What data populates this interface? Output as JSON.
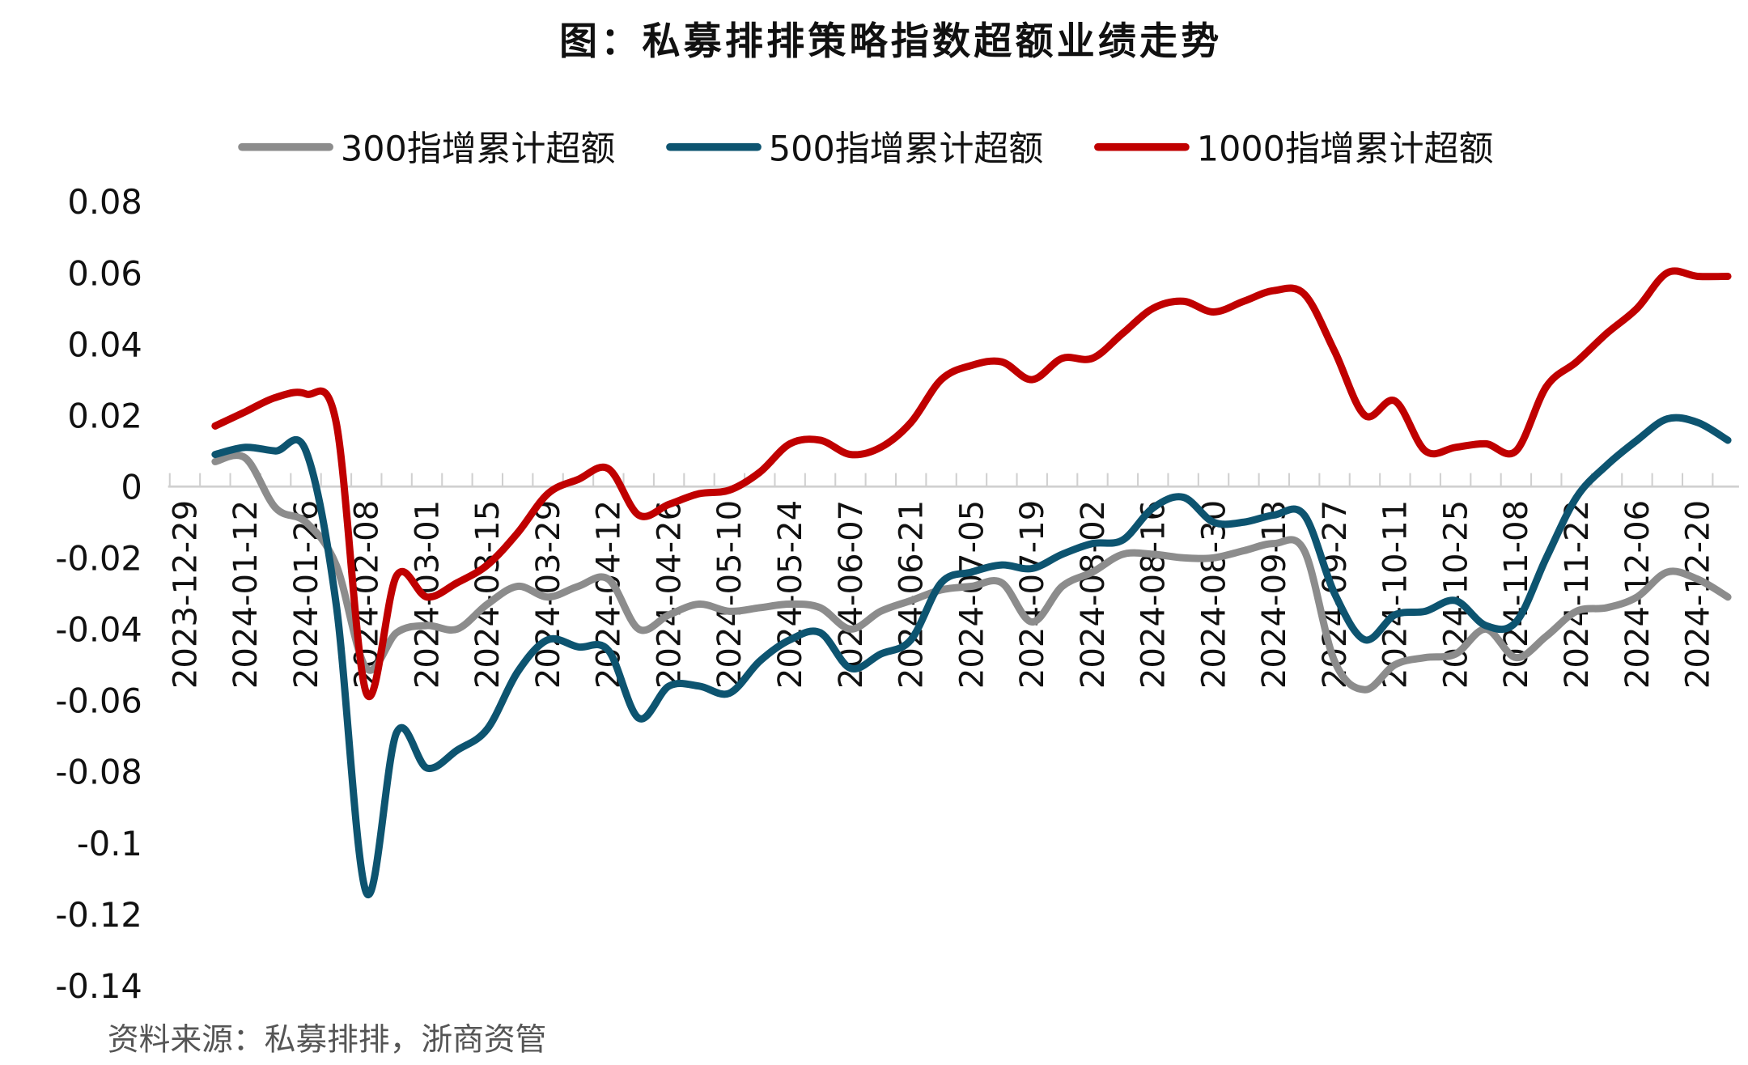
{
  "chart_data": {
    "type": "line",
    "title": "图：私募排排策略指数超额业绩走势",
    "source": "资料来源：私募排排，浙商资管",
    "ylim": [
      -0.14,
      0.08
    ],
    "yticks": [
      0.08,
      0.06,
      0.04,
      0.02,
      0,
      -0.02,
      -0.04,
      -0.06,
      -0.08,
      -0.1,
      -0.12,
      -0.14
    ],
    "ytick_labels": [
      "0.08",
      "0.06",
      "0.04",
      "0.02",
      "0",
      "-0.02",
      "-0.04",
      "-0.06",
      "-0.08",
      "-0.1",
      "-0.12",
      "-0.14"
    ],
    "x_tick_labels": [
      "2023-12-29",
      "2024-01-12",
      "2024-01-26",
      "2024-02-08",
      "2024-03-01",
      "2024-03-15",
      "2024-03-29",
      "2024-04-12",
      "2024-04-26",
      "2024-05-10",
      "2024-05-24",
      "2024-06-07",
      "2024-06-21",
      "2024-07-05",
      "2024-07-19",
      "2024-08-02",
      "2024-08-16",
      "2024-08-30",
      "2024-09-13",
      "2024-09-27",
      "2024-10-11",
      "2024-10-25",
      "2024-11-08",
      "2024-11-22",
      "2024-12-06",
      "2024-12-20"
    ],
    "x_frequency": "weekly",
    "x_start": "2024-01-05",
    "grid": false,
    "legend_placement": "top",
    "series": [
      {
        "name": "300指增累计超额",
        "color": "#8c8c8c",
        "values": [
          0.007,
          0.008,
          -0.006,
          -0.01,
          -0.022,
          -0.051,
          -0.041,
          -0.039,
          -0.04,
          -0.033,
          -0.028,
          -0.031,
          -0.028,
          -0.026,
          -0.04,
          -0.036,
          -0.033,
          -0.035,
          -0.034,
          -0.033,
          -0.034,
          -0.04,
          -0.035,
          -0.032,
          -0.029,
          -0.028,
          -0.027,
          -0.038,
          -0.028,
          -0.024,
          -0.019,
          -0.019,
          -0.02,
          -0.02,
          -0.018,
          -0.016,
          -0.018,
          -0.049,
          -0.057,
          -0.05,
          -0.048,
          -0.047,
          -0.04,
          -0.048,
          -0.042,
          -0.035,
          -0.034,
          -0.031,
          -0.024,
          -0.026,
          -0.031
        ]
      },
      {
        "name": "500指增累计超额",
        "color": "#0d5470",
        "values": [
          0.009,
          0.011,
          0.01,
          0.01,
          -0.033,
          -0.114,
          -0.069,
          -0.079,
          -0.074,
          -0.068,
          -0.052,
          -0.043,
          -0.045,
          -0.046,
          -0.065,
          -0.056,
          -0.056,
          -0.058,
          -0.049,
          -0.043,
          -0.041,
          -0.051,
          -0.047,
          -0.043,
          -0.027,
          -0.024,
          -0.022,
          -0.023,
          -0.019,
          -0.016,
          -0.015,
          -0.006,
          -0.003,
          -0.01,
          -0.01,
          -0.008,
          -0.008,
          -0.03,
          -0.043,
          -0.036,
          -0.035,
          -0.032,
          -0.039,
          -0.038,
          -0.02,
          -0.003,
          0.006,
          0.013,
          0.019,
          0.018,
          0.013
        ]
      },
      {
        "name": "1000指增累计超额",
        "color": "#c00000",
        "values": [
          0.017,
          0.021,
          0.025,
          0.026,
          0.018,
          -0.058,
          -0.025,
          -0.031,
          -0.027,
          -0.022,
          -0.013,
          -0.002,
          0.002,
          0.005,
          -0.008,
          -0.005,
          -0.002,
          -0.001,
          0.004,
          0.012,
          0.013,
          0.009,
          0.011,
          0.018,
          0.03,
          0.034,
          0.035,
          0.03,
          0.036,
          0.036,
          0.043,
          0.05,
          0.052,
          0.049,
          0.052,
          0.055,
          0.054,
          0.038,
          0.02,
          0.024,
          0.01,
          0.011,
          0.012,
          0.01,
          0.028,
          0.035,
          0.043,
          0.05,
          0.06,
          0.059,
          0.059
        ]
      }
    ]
  }
}
